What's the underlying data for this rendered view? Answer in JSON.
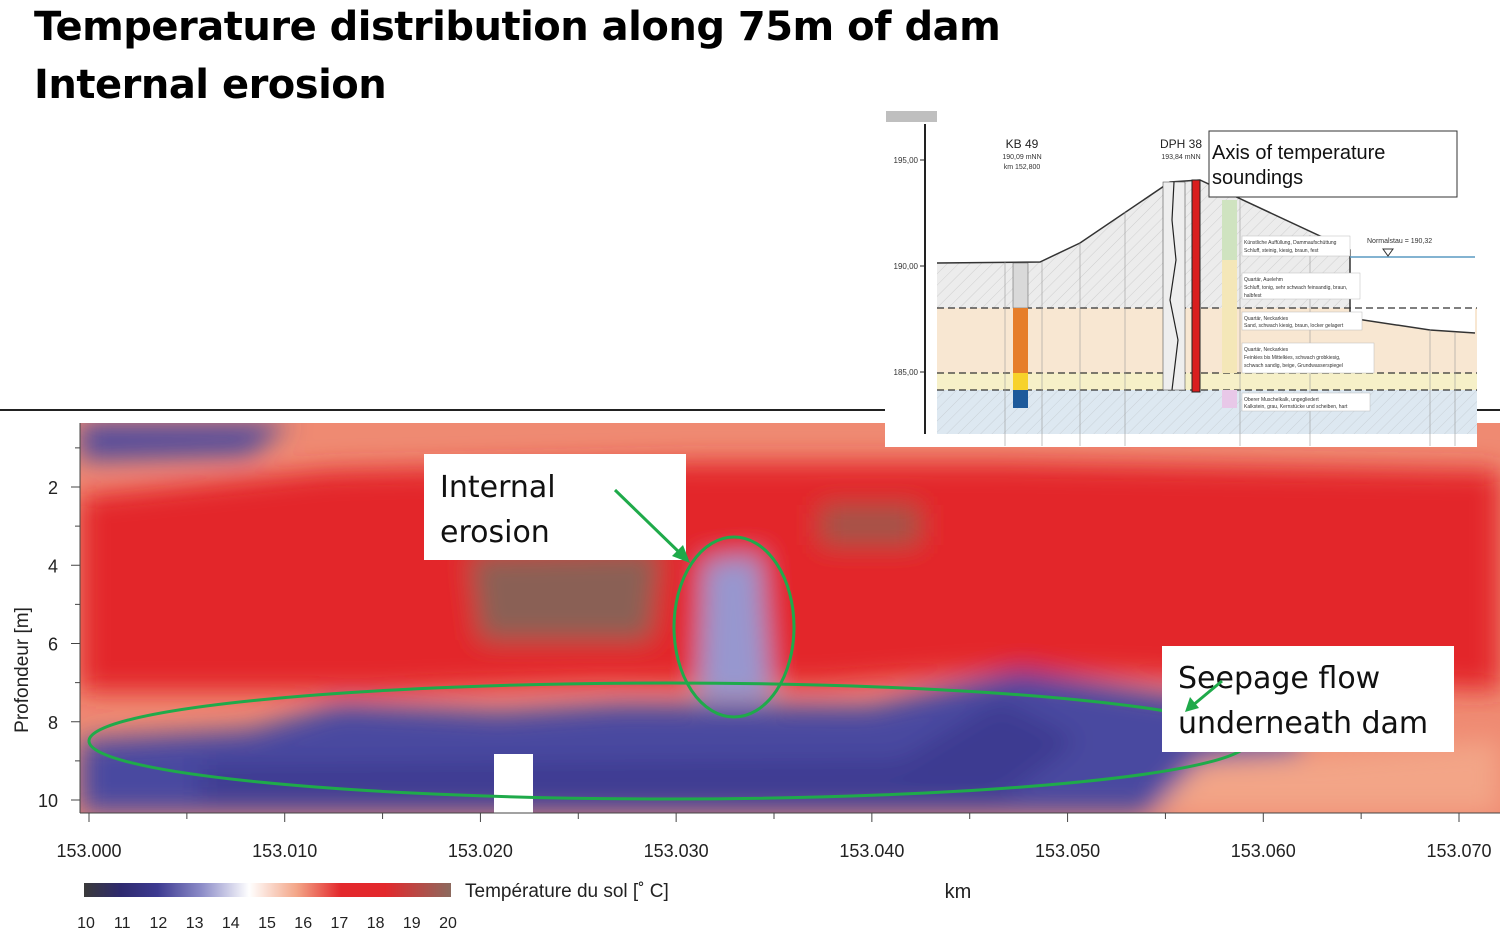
{
  "slide": {
    "title_line1": "Temperature distribution along 75m of dam",
    "title_line2": "Internal erosion"
  },
  "colors": {
    "cold": "#3d3a91",
    "mid_cold": "#8c8cc8",
    "neutral": "#ffffff",
    "warm": "#f3a587",
    "hot": "#e3282c",
    "hottest": "#8c6a5e",
    "annotation_green": "#1faa4a"
  },
  "chart_data": {
    "type": "heatmap",
    "xlabel": "km",
    "ylabel": "Profondeur [m]",
    "x_ticks": [
      "153.000",
      "153.010",
      "153.020",
      "153.030",
      "153.040",
      "153.050",
      "153.060",
      "153.070"
    ],
    "y_ticks": [
      "2",
      "4",
      "6",
      "8",
      "10"
    ],
    "xlim": [
      152.9995,
      153.0755
    ],
    "ylim": [
      0.4,
      10.3
    ],
    "y_inverted": true,
    "colorbar": {
      "label": "Température du sol [˚ C]",
      "ticks": [
        "10",
        "11",
        "12",
        "13",
        "14",
        "15",
        "16",
        "17",
        "18",
        "19",
        "20"
      ],
      "range": [
        10,
        20
      ]
    },
    "annotations": [
      {
        "text": "Internal erosion",
        "line1": "Internal",
        "line2": "erosion",
        "km": 153.0345,
        "depth": 5.6
      },
      {
        "text": "Seepage flow underneath dam",
        "line1": "Seepage flow",
        "line2": "underneath dam",
        "km": 153.031,
        "depth": 8.5
      }
    ],
    "notes": "Warm zone (17-19 °C) at 2-7 m depth; cold zone (11-13 °C) below ~7.5 m; cold intrusion at km 153.033-153.036 from 4 m to 8 m depth; no data at km 153.022-153.024 below 8.8 m."
  },
  "inset": {
    "kb_label": "KB 49",
    "kb_sub1": "190,09 mNN",
    "kb_sub2": "km 152,800",
    "dph_label": "DPH 38",
    "dph_sub": "193,84 mNN",
    "axis_label_line1": "Axis of temperature",
    "axis_label_line2": "soundings",
    "y_ticks": [
      "195,00",
      "190,00",
      "185,00"
    ],
    "normalstau": "Normalstau = 190,32",
    "layers": [
      {
        "line1": "Künstliche Auffüllung, Dammaufschüttung",
        "line2": "Schluff, steinig, kiesig, braun, fest",
        "line3": ""
      },
      {
        "line1": "Quartär, Auelehm",
        "line2": "Schluff, tonig, sehr schwach feinsandig, braun,",
        "line3": "halbfest"
      },
      {
        "line1": "Quartär, Neckarkies",
        "line2": "Sand, schwach kiesig, braun, locker gelagert",
        "line3": ""
      },
      {
        "line1": "Quartär, Neckarkies",
        "line2": "Feinkies bis Mittelkies, schwach grobkiesig,",
        "line3": "schwach sandig, beige, Grundwasserspiegel"
      },
      {
        "line1": "Oberer Muschelkalk, ungegliedert",
        "line2": "Kalkstein, grau, Kernstücke und scheiben, hart",
        "line3": ""
      }
    ]
  }
}
